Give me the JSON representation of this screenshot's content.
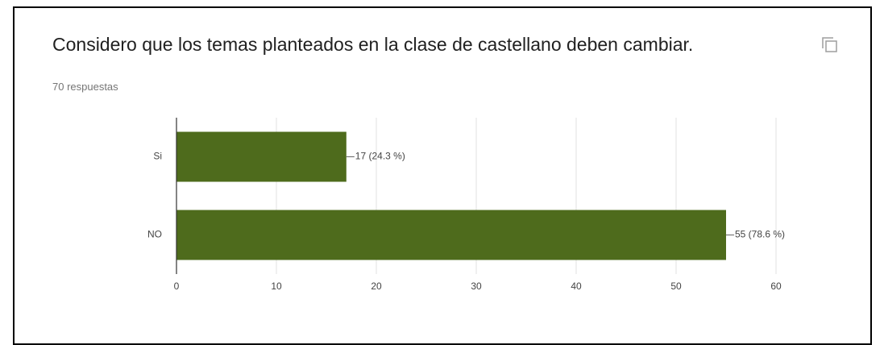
{
  "chart_data": {
    "type": "bar",
    "orientation": "horizontal",
    "title": "Considero que los temas planteados en la clase de castellano deben cambiar.",
    "subtitle": "70 respuestas",
    "categories": [
      "Si",
      "NO"
    ],
    "values": [
      17,
      55
    ],
    "value_labels": [
      "17 (24.3 %)",
      "55 (78.6 %)"
    ],
    "color": "#4e6b1c",
    "xlim": [
      0,
      60
    ],
    "xticks": [
      0,
      10,
      20,
      30,
      40,
      50,
      60
    ],
    "grid": true
  }
}
